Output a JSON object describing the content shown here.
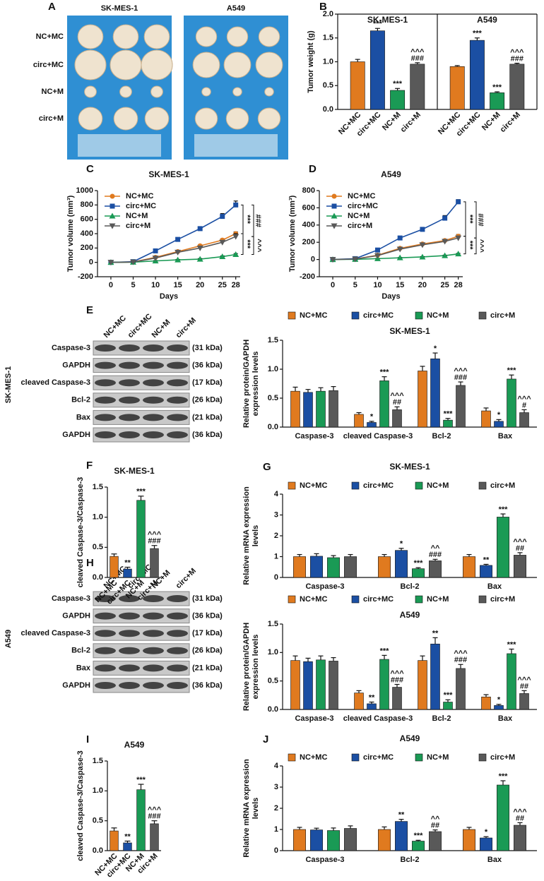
{
  "panel_a": {
    "letter": "A",
    "columns": [
      "SK-MES-1",
      "A549"
    ],
    "rows": [
      "NC+MC",
      "circ+MC",
      "NC+M",
      "circ+M"
    ]
  },
  "blots": [
    {
      "letter": "E",
      "cell_line": "SK-MES-1",
      "lanes": [
        "NC+MC",
        "circ+MC",
        "NC+M",
        "circ+M"
      ],
      "rows": [
        {
          "label": "Caspase-3",
          "size": "(31 kDa)"
        },
        {
          "label": "GAPDH",
          "size": "(36 kDa)"
        },
        {
          "label": "cleaved Caspase-3",
          "size": "(17 kDa)"
        },
        {
          "label": "Bcl-2",
          "size": "(26 kDa)"
        },
        {
          "label": "Bax",
          "size": "(21 kDa)"
        },
        {
          "label": "GAPDH",
          "size": "(36 kDa)"
        }
      ]
    },
    {
      "letter": "H",
      "cell_line": "A549",
      "lanes": [
        "NC+MC",
        "circ+MC",
        "NC+M",
        "circ+M"
      ],
      "rows": [
        {
          "label": "Caspase-3",
          "size": "(31 kDa)"
        },
        {
          "label": "GAPDH",
          "size": "(36 kDa)"
        },
        {
          "label": "cleaved Caspase-3",
          "size": "(17 kDa)"
        },
        {
          "label": "Bcl-2",
          "size": "(26 kDa)"
        },
        {
          "label": "Bax",
          "size": "(21 kDa)"
        },
        {
          "label": "GAPDH",
          "size": "(36 kDa)"
        }
      ]
    }
  ],
  "chart_data": [
    {
      "letter": "B",
      "type": "bar",
      "ylabel": [
        "Tumor weight (g)"
      ],
      "legend": "none",
      "categories": [
        "SK-MES-1",
        "A549"
      ],
      "ylim": [
        0,
        2
      ],
      "yticks": [
        {
          "value": 0,
          "label": "0.0"
        },
        0.5,
        {
          "value": 1,
          "label": "1.0"
        },
        1.5,
        {
          "value": 2,
          "label": "2.0"
        }
      ],
      "series": [
        {
          "name": "NC+MC",
          "color": "#e07a1f",
          "values": [
            1.0,
            0.9
          ],
          "errors": [
            0.05,
            0.02
          ]
        },
        {
          "name": "circ+MC",
          "color": "#1b4fa3",
          "values": [
            1.65,
            1.45
          ],
          "errors": [
            0.05,
            0.05
          ],
          "annotations": [
            [
              "***"
            ],
            [
              "***"
            ]
          ]
        },
        {
          "name": "NC+M",
          "color": "#1a9a55",
          "values": [
            0.4,
            0.35
          ],
          "errors": [
            0.04,
            0.02
          ],
          "annotations": [
            [
              "***"
            ],
            [
              "***"
            ]
          ]
        },
        {
          "name": "circ+M",
          "color": "#595959",
          "values": [
            0.95,
            0.95
          ],
          "errors": [
            0.03,
            0.02
          ],
          "annotations": [
            [
              "^^^",
              "###"
            ],
            [
              "^^^",
              "###"
            ]
          ]
        }
      ]
    },
    {
      "letter": "C",
      "type": "line",
      "title": "SK-MES-1",
      "ylabel": [
        "Tumor volume (mm³)"
      ],
      "xlabel": "Days",
      "x": [
        0,
        5,
        10,
        15,
        20,
        25,
        28
      ],
      "xlim": [
        -3,
        29
      ],
      "xticks": [
        0,
        5,
        10,
        15,
        20,
        25,
        28
      ],
      "ylim": [
        -200,
        1000
      ],
      "yticks": [
        -200,
        0,
        200,
        400,
        600,
        800,
        1000
      ],
      "legend": "upper-left",
      "comparisons": [
        "***",
        "***",
        "###",
        "^^^"
      ],
      "series": [
        {
          "name": "NC+MC",
          "color": "#e07a1f",
          "marker": "circle",
          "values": [
            0,
            5,
            70,
            150,
            230,
            310,
            400
          ],
          "errors": [
            0,
            3,
            8,
            12,
            15,
            18,
            25
          ]
        },
        {
          "name": "circ+MC",
          "color": "#1b4fa3",
          "marker": "square",
          "values": [
            0,
            10,
            160,
            320,
            470,
            640,
            800
          ],
          "errors": [
            0,
            5,
            12,
            18,
            25,
            40,
            55
          ]
        },
        {
          "name": "NC+M",
          "color": "#1a9a55",
          "marker": "triangle",
          "values": [
            0,
            3,
            20,
            35,
            45,
            80,
            110
          ],
          "errors": [
            0,
            2,
            4,
            6,
            8,
            10,
            12
          ]
        },
        {
          "name": "circ+M",
          "color": "#595959",
          "marker": "triangle-down",
          "values": [
            0,
            5,
            60,
            140,
            200,
            280,
            360
          ],
          "errors": [
            0,
            3,
            8,
            12,
            15,
            25,
            40
          ]
        }
      ]
    },
    {
      "letter": "D",
      "type": "line",
      "title": "A549",
      "ylabel": [
        "Tumor volume (mm³)"
      ],
      "xlabel": "Days",
      "x": [
        0,
        5,
        10,
        15,
        20,
        25,
        28
      ],
      "xlim": [
        -3,
        29
      ],
      "xticks": [
        0,
        5,
        10,
        15,
        20,
        25,
        28
      ],
      "ylim": [
        -200,
        800
      ],
      "yticks": [
        -200,
        0,
        200,
        400,
        600,
        800
      ],
      "legend": "upper-left",
      "comparisons": [
        "***",
        "***",
        "###",
        "^^^"
      ],
      "series": [
        {
          "name": "NC+MC",
          "color": "#e07a1f",
          "marker": "circle",
          "values": [
            0,
            5,
            50,
            130,
            180,
            220,
            270
          ],
          "errors": [
            0,
            3,
            6,
            10,
            12,
            15,
            20
          ]
        },
        {
          "name": "circ+MC",
          "color": "#1b4fa3",
          "marker": "square",
          "values": [
            0,
            10,
            110,
            250,
            350,
            480,
            670
          ],
          "errors": [
            0,
            4,
            10,
            15,
            20,
            30,
            25
          ]
        },
        {
          "name": "NC+M",
          "color": "#1a9a55",
          "marker": "triangle",
          "values": [
            0,
            2,
            10,
            20,
            30,
            45,
            65
          ],
          "errors": [
            0,
            1,
            2,
            3,
            4,
            5,
            6
          ]
        },
        {
          "name": "circ+M",
          "color": "#595959",
          "marker": "triangle-down",
          "values": [
            0,
            5,
            45,
            120,
            170,
            210,
            250
          ],
          "errors": [
            0,
            3,
            6,
            10,
            12,
            15,
            20
          ]
        }
      ]
    },
    {
      "type": "bar",
      "title": "SK-MES-1",
      "ylabel": [
        "Relative protein/GAPDH",
        "expression levels"
      ],
      "legend": "above-title",
      "categories": [
        "Caspase-3",
        "cleaved Caspase-3",
        "Bcl-2",
        "Bax"
      ],
      "ylim": [
        0,
        1.5
      ],
      "yticks": [
        {
          "value": 0,
          "label": "0.0"
        },
        0.5,
        {
          "value": 1,
          "label": "1.0"
        },
        1.5
      ],
      "series": [
        {
          "name": "NC+MC",
          "color": "#e07a1f",
          "values": [
            0.62,
            0.22,
            0.97,
            0.28
          ],
          "errors": [
            0.07,
            0.03,
            0.08,
            0.05
          ]
        },
        {
          "name": "circ+MC",
          "color": "#1b4fa3",
          "values": [
            0.6,
            0.08,
            1.18,
            0.1
          ],
          "errors": [
            0.05,
            0.02,
            0.1,
            0.03
          ],
          "annotations": [
            null,
            [
              "*"
            ],
            [
              "*"
            ],
            [
              "*"
            ]
          ]
        },
        {
          "name": "NC+M",
          "color": "#1a9a55",
          "values": [
            0.62,
            0.8,
            0.12,
            0.83
          ],
          "errors": [
            0.06,
            0.07,
            0.03,
            0.07
          ],
          "annotations": [
            null,
            [
              "***"
            ],
            [
              "***"
            ],
            [
              "***"
            ]
          ]
        },
        {
          "name": "circ+M",
          "color": "#595959",
          "values": [
            0.63,
            0.3,
            0.72,
            0.25
          ],
          "errors": [
            0.07,
            0.05,
            0.06,
            0.05
          ],
          "annotations": [
            null,
            [
              "^^^",
              "##"
            ],
            [
              "^^^",
              "###"
            ],
            [
              "^^^",
              "#"
            ]
          ]
        }
      ]
    },
    {
      "letter": "F",
      "type": "bar",
      "title": "SK-MES-1",
      "ylabel": [
        "cleaved Caspase-3/Caspase-3"
      ],
      "categories": [
        "NC+MC",
        "circ+MC",
        "NC+M",
        "circ+M"
      ],
      "colors": [
        "#e07a1f",
        "#1b4fa3",
        "#1a9a55",
        "#595959"
      ],
      "values": [
        0.35,
        0.14,
        1.28,
        0.48
      ],
      "errors": [
        0.04,
        0.03,
        0.07,
        0.05
      ],
      "annotations": [
        null,
        [
          "**"
        ],
        [
          "***"
        ],
        [
          "^^^",
          "###"
        ]
      ],
      "ylim": [
        0,
        1.5
      ],
      "yticks": [
        {
          "value": 0,
          "label": "0.0"
        },
        0.5,
        {
          "value": 1,
          "label": "1.0"
        },
        1.5
      ]
    },
    {
      "letter": "G",
      "type": "bar",
      "title": "SK-MES-1",
      "ylabel": [
        "Relative mRNA expression",
        "levels"
      ],
      "legend": "below-title",
      "categories": [
        "Caspase-3",
        "Bcl-2",
        "Bax"
      ],
      "ylim": [
        0,
        4
      ],
      "yticks": [
        0,
        1,
        2,
        3,
        4
      ],
      "series": [
        {
          "name": "NC+MC",
          "color": "#e07a1f",
          "values": [
            1.0,
            1.0,
            1.0
          ],
          "errors": [
            0.1,
            0.1,
            0.1
          ]
        },
        {
          "name": "circ+MC",
          "color": "#1b4fa3",
          "values": [
            1.02,
            1.3,
            0.58
          ],
          "errors": [
            0.12,
            0.1,
            0.05
          ],
          "annotations": [
            null,
            [
              "*"
            ],
            [
              "**"
            ]
          ]
        },
        {
          "name": "NC+M",
          "color": "#1a9a55",
          "values": [
            0.95,
            0.42,
            2.9
          ],
          "errors": [
            0.1,
            0.05,
            0.15
          ],
          "annotations": [
            null,
            [
              "***"
            ],
            [
              "***"
            ]
          ]
        },
        {
          "name": "circ+M",
          "color": "#595959",
          "values": [
            1.0,
            0.8,
            1.07
          ],
          "errors": [
            0.1,
            0.07,
            0.12
          ],
          "annotations": [
            null,
            [
              "^^",
              "###"
            ],
            [
              "^^^",
              "##"
            ]
          ]
        }
      ]
    },
    {
      "type": "bar",
      "title": "A549",
      "ylabel": [
        "Relative protein/GAPDH",
        "expression levels"
      ],
      "legend": "above-title",
      "categories": [
        "Caspase-3",
        "cleaved Caspase-3",
        "Bcl-2",
        "Bax"
      ],
      "ylim": [
        0,
        1.5
      ],
      "yticks": [
        {
          "value": 0,
          "label": "0.0"
        },
        0.5,
        {
          "value": 1,
          "label": "1.0"
        },
        1.5
      ],
      "series": [
        {
          "name": "NC+MC",
          "color": "#e07a1f",
          "values": [
            0.86,
            0.29,
            0.86,
            0.22
          ],
          "errors": [
            0.08,
            0.04,
            0.08,
            0.04
          ]
        },
        {
          "name": "circ+MC",
          "color": "#1b4fa3",
          "values": [
            0.84,
            0.1,
            1.15,
            0.07
          ],
          "errors": [
            0.06,
            0.03,
            0.11,
            0.02
          ],
          "annotations": [
            null,
            [
              "**"
            ],
            [
              "**"
            ],
            [
              "*"
            ]
          ]
        },
        {
          "name": "NC+M",
          "color": "#1a9a55",
          "values": [
            0.87,
            0.88,
            0.13,
            0.98
          ],
          "errors": [
            0.07,
            0.07,
            0.04,
            0.08
          ],
          "annotations": [
            null,
            [
              "***"
            ],
            [
              "***"
            ],
            [
              "***"
            ]
          ]
        },
        {
          "name": "circ+M",
          "color": "#595959",
          "values": [
            0.85,
            0.39,
            0.72,
            0.28
          ],
          "errors": [
            0.06,
            0.05,
            0.07,
            0.05
          ],
          "annotations": [
            null,
            [
              "^^^",
              "###"
            ],
            [
              "^^^",
              "###"
            ],
            [
              "^^^",
              "##"
            ]
          ]
        }
      ]
    },
    {
      "letter": "I",
      "type": "bar",
      "title": "A549",
      "ylabel": [
        "cleaved Caspase-3/Caspase-3"
      ],
      "categories": [
        "NC+MC",
        "circ+MC",
        "NC+M",
        "circ+M"
      ],
      "colors": [
        "#e07a1f",
        "#1b4fa3",
        "#1a9a55",
        "#595959"
      ],
      "values": [
        0.33,
        0.13,
        1.02,
        0.45
      ],
      "errors": [
        0.05,
        0.03,
        0.09,
        0.05
      ],
      "annotations": [
        null,
        [
          "**"
        ],
        [
          "***"
        ],
        [
          "^^^",
          "###"
        ]
      ],
      "ylim": [
        0,
        1.5
      ],
      "yticks": [
        {
          "value": 0,
          "label": "0.0"
        },
        0.5,
        {
          "value": 1,
          "label": "1.0"
        },
        1.5
      ]
    },
    {
      "letter": "J",
      "type": "bar",
      "title": "A549",
      "ylabel": [
        "Relative mRNA expression",
        "levels"
      ],
      "legend": "below-title",
      "categories": [
        "Caspase-3",
        "Bcl-2",
        "Bax"
      ],
      "ylim": [
        0,
        4
      ],
      "yticks": [
        0,
        1,
        2,
        3,
        4
      ],
      "series": [
        {
          "name": "NC+MC",
          "color": "#e07a1f",
          "values": [
            1.0,
            1.0,
            1.0
          ],
          "errors": [
            0.1,
            0.12,
            0.1
          ]
        },
        {
          "name": "circ+MC",
          "color": "#1b4fa3",
          "values": [
            0.98,
            1.38,
            0.6
          ],
          "errors": [
            0.08,
            0.1,
            0.06
          ],
          "annotations": [
            null,
            [
              "**"
            ],
            [
              "*"
            ]
          ]
        },
        {
          "name": "NC+M",
          "color": "#1a9a55",
          "values": [
            0.95,
            0.45,
            3.1
          ],
          "errors": [
            0.12,
            0.04,
            0.2
          ],
          "annotations": [
            null,
            [
              "***"
            ],
            [
              "***"
            ]
          ]
        },
        {
          "name": "circ+M",
          "color": "#595959",
          "values": [
            1.05,
            0.9,
            1.2
          ],
          "errors": [
            0.12,
            0.08,
            0.12
          ],
          "annotations": [
            null,
            [
              "^^",
              "##"
            ],
            [
              "^^^",
              "##"
            ]
          ]
        }
      ]
    }
  ]
}
